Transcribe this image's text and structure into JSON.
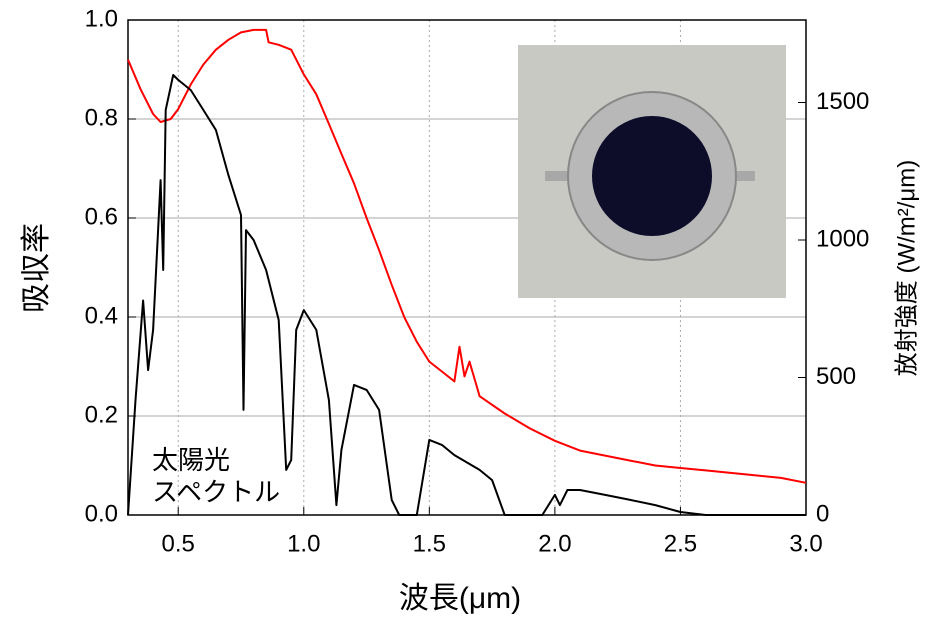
{
  "chart_data": {
    "type": "line",
    "xlabel": "波長(μm)",
    "ylabel": "吸収率",
    "y2label": "放射強度 (W/m²/μm)",
    "annotation": [
      "太陽光",
      "スペクトル"
    ],
    "xlim": [
      0.3,
      3.0
    ],
    "xticks": [
      0.5,
      {
        "value": 1,
        "label": "1.0"
      },
      1.5,
      {
        "value": 2,
        "label": "2.0"
      },
      2.5,
      {
        "value": 3,
        "label": "3.0"
      }
    ],
    "ylim": [
      0,
      1
    ],
    "yticks": [
      {
        "value": 0,
        "label": "0.0"
      },
      0.2,
      0.4,
      0.6,
      0.8,
      {
        "value": 1,
        "label": "1.0"
      }
    ],
    "y2lim": [
      0,
      1800
    ],
    "y2ticks": [
      0,
      500,
      1000,
      1500
    ],
    "grid": true,
    "series": [
      {
        "color": "#ff0000",
        "axis": "y",
        "x": [
          0.3,
          0.35,
          0.4,
          0.43,
          0.47,
          0.5,
          0.55,
          0.6,
          0.65,
          0.7,
          0.75,
          0.8,
          0.85,
          0.86,
          0.9,
          0.95,
          1.0,
          1.05,
          1.1,
          1.15,
          1.2,
          1.25,
          1.3,
          1.35,
          1.4,
          1.45,
          1.5,
          1.55,
          1.6,
          1.62,
          1.64,
          1.66,
          1.7,
          1.8,
          1.9,
          2.0,
          2.1,
          2.2,
          2.3,
          2.4,
          2.5,
          2.6,
          2.7,
          2.8,
          2.9,
          3.0
        ],
        "values": [
          0.92,
          0.86,
          0.81,
          0.794,
          0.8,
          0.82,
          0.87,
          0.91,
          0.94,
          0.96,
          0.975,
          0.98,
          0.98,
          0.955,
          0.95,
          0.94,
          0.89,
          0.85,
          0.79,
          0.73,
          0.67,
          0.6,
          0.535,
          0.465,
          0.4,
          0.35,
          0.31,
          0.29,
          0.27,
          0.34,
          0.28,
          0.31,
          0.24,
          0.205,
          0.175,
          0.15,
          0.13,
          0.12,
          0.11,
          0.1,
          0.095,
          0.09,
          0.085,
          0.08,
          0.075,
          0.065
        ]
      },
      {
        "color": "#000000",
        "axis": "y2",
        "x": [
          0.3,
          0.33,
          0.36,
          0.38,
          0.4,
          0.42,
          0.43,
          0.44,
          0.45,
          0.48,
          0.5,
          0.55,
          0.6,
          0.65,
          0.7,
          0.75,
          0.76,
          0.77,
          0.8,
          0.85,
          0.9,
          0.93,
          0.95,
          0.97,
          1.0,
          1.05,
          1.1,
          1.13,
          1.15,
          1.2,
          1.25,
          1.3,
          1.35,
          1.38,
          1.45,
          1.48,
          1.5,
          1.55,
          1.6,
          1.7,
          1.75,
          1.8,
          1.95,
          2.0,
          2.02,
          2.05,
          2.1,
          2.2,
          2.3,
          2.4,
          2.5,
          2.6,
          3.0
        ],
        "values": [
          0,
          418,
          780,
          527,
          673,
          1036,
          1218,
          891,
          1473,
          1600,
          1582,
          1545,
          1473,
          1400,
          1236,
          1091,
          382,
          1036,
          1000,
          891,
          709,
          164,
          200,
          673,
          745,
          673,
          418,
          36,
          236,
          473,
          455,
          382,
          55,
          0,
          0,
          164,
          273,
          255,
          218,
          164,
          127,
          0,
          0,
          73,
          36,
          91,
          91,
          73,
          55,
          36,
          11,
          0,
          0
        ]
      }
    ]
  }
}
